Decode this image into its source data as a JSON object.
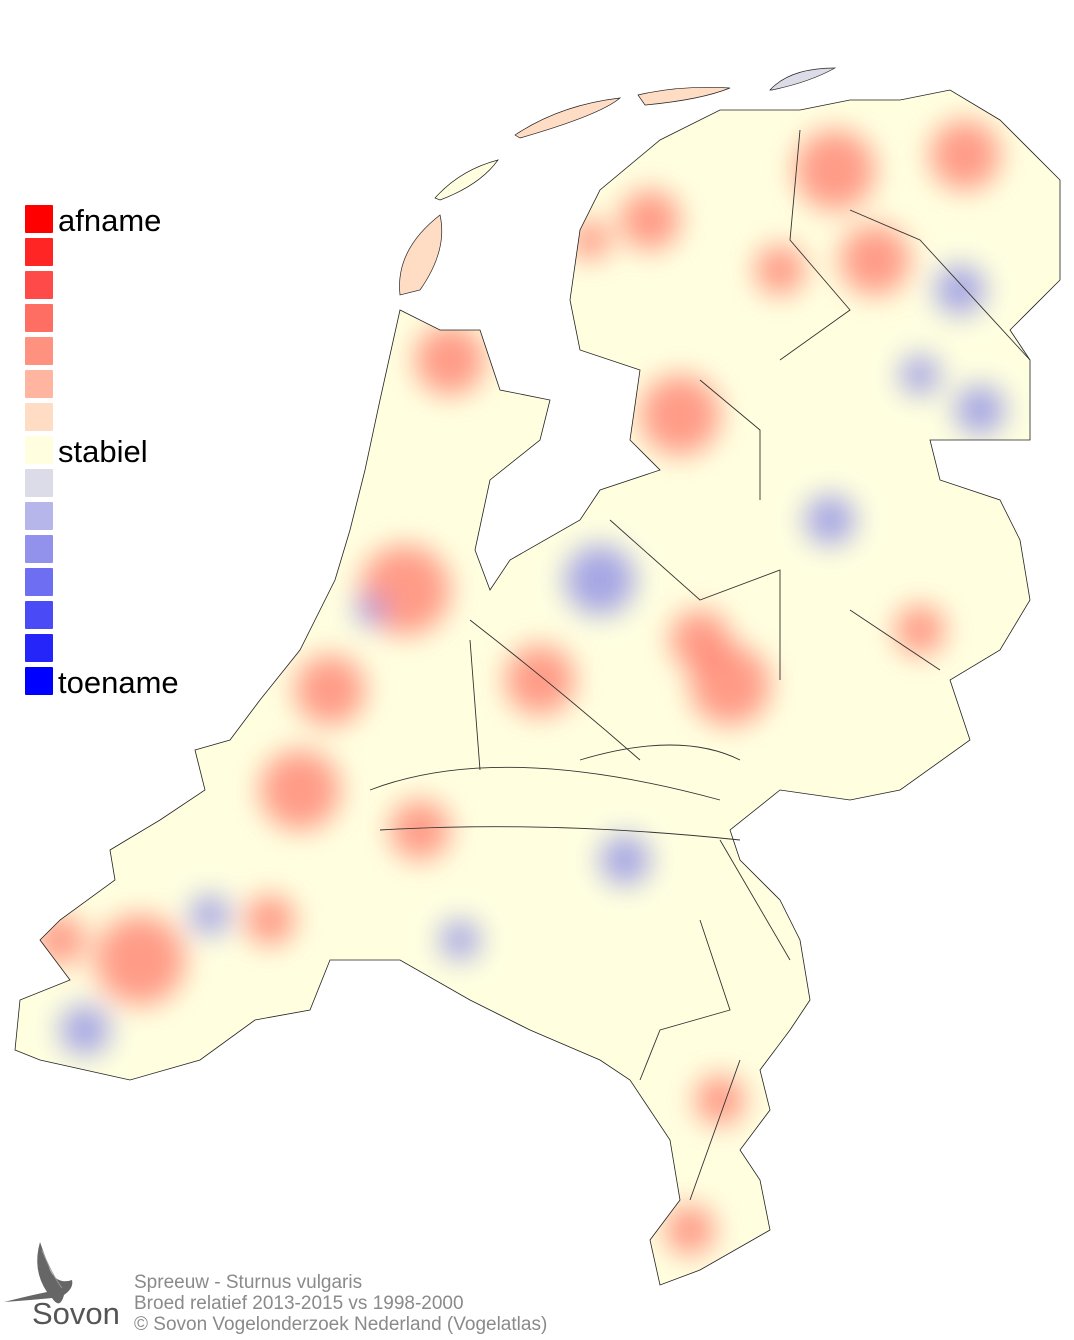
{
  "legend": {
    "top_label": "afname",
    "mid_label": "stabiel",
    "bottom_label": "toename",
    "colors": [
      "#ff0000",
      "#ff2525",
      "#ff4a4a",
      "#ff6e62",
      "#ff917f",
      "#ffb5a0",
      "#ffdcc4",
      "#ffffe0",
      "#dcdce8",
      "#b6b6ea",
      "#9292ec",
      "#6e6ef2",
      "#4a4af6",
      "#2525fa",
      "#0000ff"
    ]
  },
  "map": {
    "base_color": "#ffffe0",
    "increase_color": "#8f8fe6",
    "decrease_color": "#ff7a6a",
    "border_color": "#000000"
  },
  "footer": {
    "line1": "Spreeuw - Sturnus vulgaris",
    "line2": "Broed relatief 2013-2015 vs 1998-2000",
    "line3": "© Sovon Vogelonderzoek Nederland (Vogelatlas)"
  },
  "logo": {
    "text": "Sovon",
    "icon": "swallow-icon"
  }
}
